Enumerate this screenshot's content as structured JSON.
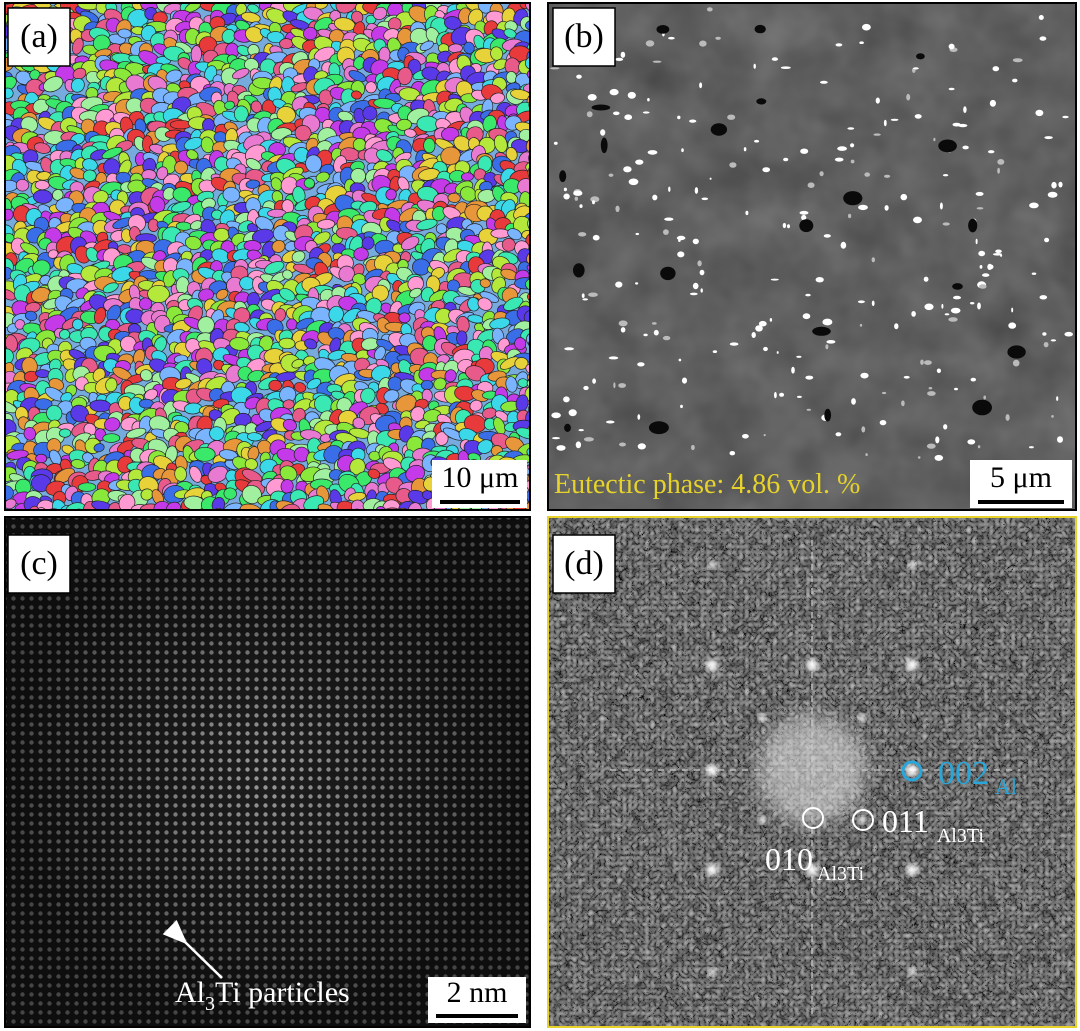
{
  "panels": [
    {
      "label": "(a)",
      "scale_bar": "10 μm"
    },
    {
      "label": "(b)",
      "scale_bar": "5 μm",
      "caption": "Eutectic phase: 4.86 vol. %"
    },
    {
      "label": "(c)",
      "scale_bar": "2 nm",
      "annotation": {
        "before": "Al",
        "subscript": "3",
        "after": "Ti particles"
      }
    },
    {
      "label": "(d)",
      "spots": [
        {
          "index": "002",
          "phase": "Al"
        },
        {
          "index": "011",
          "phase": "Al3Ti"
        },
        {
          "index": "010",
          "phase": "Al3Ti"
        }
      ]
    }
  ]
}
